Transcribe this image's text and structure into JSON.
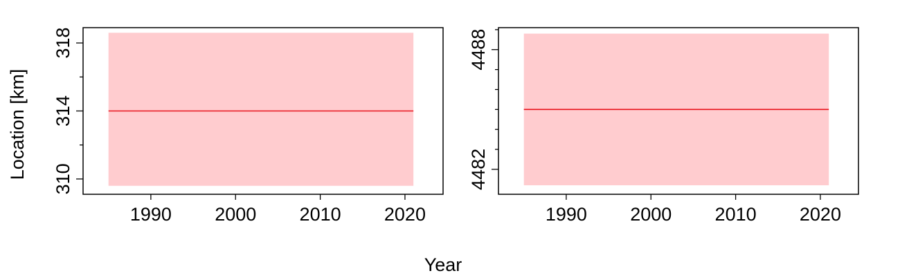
{
  "figure": {
    "shared_xlabel": "Year",
    "shared_ylabel": "Location [km]"
  },
  "chart_data": [
    {
      "type": "line",
      "title": "",
      "xlabel": "Year",
      "ylabel": "Location [km]",
      "xlim": [
        1982,
        2024.5
      ],
      "ylim": [
        309.1,
        318.9
      ],
      "xticks": [
        1990,
        2000,
        2010,
        2020
      ],
      "yticks_major": [
        310,
        314,
        318
      ],
      "yticks_minor": [
        312,
        316
      ],
      "grid": false,
      "legend": "none",
      "series": [
        {
          "x": [
            1985,
            2021
          ],
          "y": [
            314,
            314
          ],
          "band_lower": [
            309.6,
            309.6
          ],
          "band_upper": [
            318.6,
            318.6
          ],
          "line_color": "#e8111a",
          "band_color": "#ffcccf"
        }
      ]
    },
    {
      "type": "line",
      "title": "",
      "xlabel": "Year",
      "ylabel": "",
      "xlim": [
        1982,
        2024.5
      ],
      "ylim": [
        4480.75,
        4489.1
      ],
      "xticks": [
        1990,
        2000,
        2010,
        2020
      ],
      "yticks_major": [
        4482,
        4488
      ],
      "yticks_minor": [
        4483,
        4484,
        4485,
        4486,
        4487,
        4489
      ],
      "grid": false,
      "legend": "none",
      "series": [
        {
          "x": [
            1985,
            2021
          ],
          "y": [
            4485,
            4485
          ],
          "band_lower": [
            4481.2,
            4481.2
          ],
          "band_upper": [
            4488.8,
            4488.8
          ],
          "line_color": "#e8111a",
          "band_color": "#ffcccf"
        }
      ]
    }
  ]
}
